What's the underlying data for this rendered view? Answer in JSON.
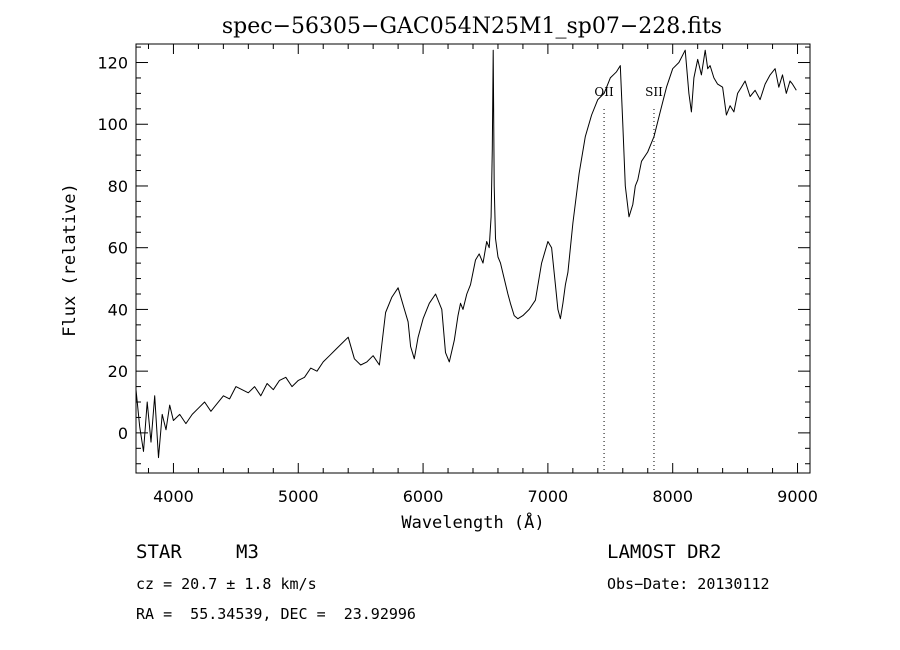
{
  "chart_data": {
    "type": "line",
    "title": "spec−56305−GAC054N25M1_sp07−228.fits",
    "xlabel": "Wavelength (Å)",
    "ylabel": "Flux (relative)",
    "xlim": [
      3700,
      9100
    ],
    "ylim": [
      -13,
      126
    ],
    "x_ticks": [
      4000,
      5000,
      6000,
      7000,
      8000,
      9000
    ],
    "x_tick_labels": [
      "4000",
      "5000",
      "6000",
      "7000",
      "8000",
      "9000"
    ],
    "y_ticks": [
      0,
      20,
      40,
      60,
      80,
      100,
      120
    ],
    "y_tick_labels": [
      "0",
      "20",
      "40",
      "60",
      "80",
      "100",
      "120"
    ],
    "x_minor_step": 200,
    "y_minor_step": 5,
    "grid": false,
    "legend": "none",
    "series": [
      {
        "x": [
          3700,
          3730,
          3760,
          3790,
          3820,
          3850,
          3880,
          3910,
          3940,
          3970,
          4000,
          4050,
          4100,
          4150,
          4200,
          4250,
          4300,
          4340,
          4400,
          4450,
          4500,
          4550,
          4600,
          4650,
          4700,
          4750,
          4800,
          4850,
          4900,
          4950,
          5000,
          5050,
          5100,
          5150,
          5200,
          5250,
          5300,
          5350,
          5400,
          5450,
          5500,
          5550,
          5600,
          5650,
          5700,
          5750,
          5800,
          5850,
          5880,
          5900,
          5930,
          5960,
          6000,
          6050,
          6100,
          6150,
          6180,
          6210,
          6250,
          6280,
          6300,
          6320,
          6350,
          6380,
          6400,
          6420,
          6450,
          6480,
          6510,
          6530,
          6545,
          6555,
          6562,
          6570,
          6580,
          6600,
          6620,
          6650,
          6680,
          6700,
          6730,
          6760,
          6800,
          6850,
          6900,
          6950,
          7000,
          7030,
          7060,
          7080,
          7100,
          7120,
          7140,
          7160,
          7200,
          7250,
          7300,
          7350,
          7400,
          7450,
          7500,
          7550,
          7580,
          7600,
          7620,
          7650,
          7680,
          7700,
          7720,
          7750,
          7800,
          7850,
          7900,
          7950,
          8000,
          8050,
          8100,
          8130,
          8150,
          8170,
          8200,
          8230,
          8260,
          8280,
          8300,
          8330,
          8360,
          8400,
          8430,
          8460,
          8490,
          8520,
          8550,
          8580,
          8620,
          8660,
          8700,
          8740,
          8780,
          8820,
          8850,
          8880,
          8910,
          8940,
          8960,
          8990
        ],
        "y": [
          14,
          2,
          -6,
          10,
          -3,
          12,
          -8,
          6,
          1,
          9,
          4,
          6,
          3,
          6,
          8,
          10,
          7,
          9,
          12,
          11,
          15,
          14,
          13,
          15,
          12,
          16,
          14,
          17,
          18,
          15,
          17,
          18,
          21,
          20,
          23,
          25,
          27,
          29,
          31,
          24,
          22,
          23,
          25,
          22,
          39,
          44,
          47,
          40,
          36,
          28,
          24,
          31,
          37,
          42,
          45,
          40,
          26,
          23,
          30,
          38,
          42,
          40,
          45,
          48,
          52,
          56,
          58,
          55,
          62,
          60,
          70,
          92,
          124,
          80,
          63,
          57,
          55,
          50,
          45,
          42,
          38,
          37,
          38,
          40,
          43,
          55,
          62,
          60,
          48,
          40,
          37,
          42,
          48,
          52,
          68,
          84,
          96,
          103,
          108,
          110,
          115,
          117,
          119,
          100,
          80,
          70,
          74,
          80,
          82,
          88,
          91,
          96,
          104,
          112,
          118,
          120,
          124,
          110,
          104,
          115,
          121,
          116,
          124,
          118,
          119,
          115,
          113,
          112,
          103,
          106,
          104,
          110,
          112,
          114,
          109,
          111,
          108,
          113,
          116,
          118,
          112,
          116,
          110,
          114,
          113,
          111
        ]
      }
    ],
    "annotations": [
      {
        "label": "OII",
        "x": 7450
      },
      {
        "label": "SII",
        "x": 7850
      }
    ]
  },
  "info": {
    "class": "STAR",
    "subclass": "M3",
    "survey": "LAMOST DR2",
    "cz": "cz = 20.7 ± 1.8 km/s",
    "obs_date": "Obs−Date: 20130112",
    "radec": "RA =  55.34539, DEC =  23.92996"
  }
}
